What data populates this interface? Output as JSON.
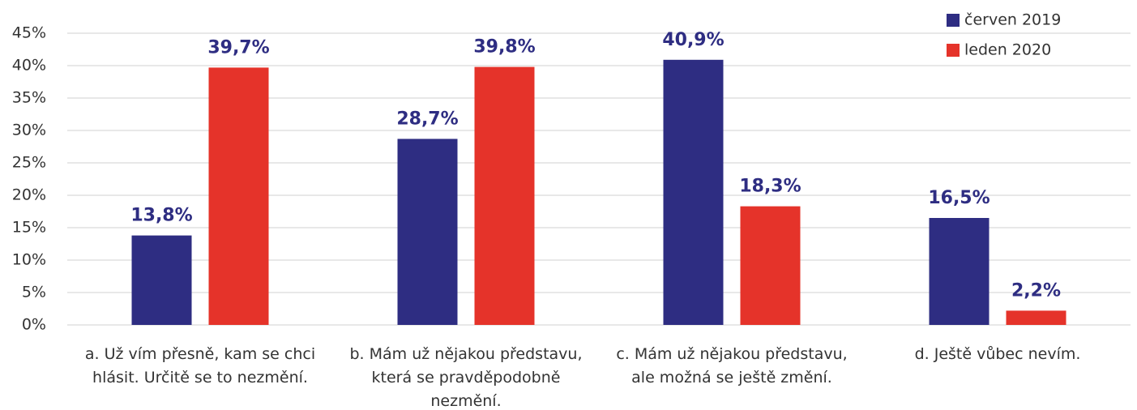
{
  "chart_data": {
    "type": "bar",
    "categories": [
      "a. Už vím přesně, kam se chci hlásit. Určitě se to nezmění.",
      "b. Mám už nějakou představu, která se pravděpodobně nezmění.",
      "c. Mám už nějakou představu, ale možná se ještě změní.",
      "d. Ještě vůbec nevím."
    ],
    "series": [
      {
        "name": "červen 2019",
        "color": "#2e2d82",
        "values": [
          13.8,
          28.7,
          40.9,
          16.5
        ],
        "value_labels": [
          "13,8%",
          "28,7%",
          "40,9%",
          "16,5%"
        ]
      },
      {
        "name": "leden 2020",
        "color": "#e5332a",
        "values": [
          39.7,
          39.8,
          18.3,
          2.2
        ],
        "value_labels": [
          "39,7%",
          "39,8%",
          "18,3%",
          "2,2%"
        ]
      }
    ],
    "ylim": [
      0,
      45
    ],
    "yticks": [
      {
        "value": 0,
        "label": "0%"
      },
      {
        "value": 5,
        "label": "5%"
      },
      {
        "value": 10,
        "label": "10%"
      },
      {
        "value": 15,
        "label": "15%"
      },
      {
        "value": 20,
        "label": "20%"
      },
      {
        "value": 25,
        "label": "25%"
      },
      {
        "value": 30,
        "label": "30%"
      },
      {
        "value": 35,
        "label": "35%"
      },
      {
        "value": 40,
        "label": "40%"
      },
      {
        "value": 45,
        "label": "45%"
      }
    ],
    "grid": true,
    "legend": "top-right"
  }
}
